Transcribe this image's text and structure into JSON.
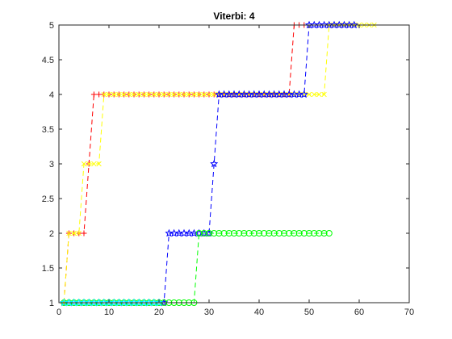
{
  "chart_data": {
    "type": "line",
    "title": "Viterbi: 4",
    "xlabel": "",
    "ylabel": "",
    "xlim": [
      0,
      70
    ],
    "ylim": [
      1,
      5
    ],
    "x_ticks": [
      "0",
      "10",
      "20",
      "30",
      "40",
      "50",
      "60",
      "70"
    ],
    "y_ticks": [
      "1",
      "1.5",
      "2",
      "2.5",
      "3",
      "3.5",
      "4",
      "4.5",
      "5"
    ],
    "grid": false,
    "series": [
      {
        "color": "#ff0000",
        "line_style": "dashed",
        "marker": "plus",
        "x": [
          1,
          2,
          3,
          4,
          5,
          6,
          7,
          8,
          9,
          10,
          11,
          12,
          13,
          14,
          15,
          16,
          17,
          18,
          19,
          20,
          21,
          22,
          23,
          24,
          25,
          26,
          27,
          28,
          29,
          30,
          31,
          32,
          33,
          34,
          35,
          36,
          37,
          38,
          39,
          40,
          41,
          42,
          43,
          44,
          45,
          46,
          47,
          48,
          49
        ],
        "y": [
          1,
          2,
          2,
          2,
          2,
          3,
          4,
          4,
          4,
          4,
          4,
          4,
          4,
          4,
          4,
          4,
          4,
          4,
          4,
          4,
          4,
          4,
          4,
          4,
          4,
          4,
          4,
          4,
          4,
          4,
          4,
          4,
          4,
          4,
          4,
          4,
          4,
          4,
          4,
          4,
          4,
          4,
          4,
          4,
          4,
          4,
          5,
          5,
          5
        ]
      },
      {
        "color": "#ffff00",
        "line_style": "dashed",
        "marker": "x",
        "x": [
          1,
          2,
          3,
          4,
          5,
          6,
          7,
          8,
          9,
          10,
          11,
          12,
          13,
          14,
          15,
          16,
          17,
          18,
          19,
          20,
          21,
          22,
          23,
          24,
          25,
          26,
          27,
          28,
          29,
          30,
          31,
          32,
          33,
          34,
          35,
          36,
          37,
          38,
          39,
          40,
          41,
          42,
          43,
          44,
          45,
          46,
          47,
          48,
          49,
          50,
          51,
          52,
          53,
          54,
          55,
          56,
          57,
          58,
          59,
          60,
          61,
          62,
          63
        ],
        "y": [
          1,
          2,
          2,
          2,
          3,
          3,
          3,
          3,
          4,
          4,
          4,
          4,
          4,
          4,
          4,
          4,
          4,
          4,
          4,
          4,
          4,
          4,
          4,
          4,
          4,
          4,
          4,
          4,
          4,
          4,
          4,
          4,
          4,
          4,
          4,
          4,
          4,
          4,
          4,
          4,
          4,
          4,
          4,
          4,
          4,
          4,
          4,
          4,
          4,
          4,
          4,
          4,
          4,
          5,
          5,
          5,
          5,
          5,
          5,
          5,
          5,
          5,
          5
        ]
      },
      {
        "color": "#0000ff",
        "line_style": "dashed",
        "marker": "star",
        "x": [
          1,
          2,
          3,
          4,
          5,
          6,
          7,
          8,
          9,
          10,
          11,
          12,
          13,
          14,
          15,
          16,
          17,
          18,
          19,
          20,
          21,
          22,
          23,
          24,
          25,
          26,
          27,
          28,
          29,
          30,
          31,
          32,
          33,
          34,
          35,
          36,
          37,
          38,
          39,
          40,
          41,
          42,
          43,
          44,
          45,
          46,
          47,
          48,
          49,
          50,
          51,
          52,
          53,
          54,
          55,
          56,
          57,
          58,
          59
        ],
        "y": [
          1,
          1,
          1,
          1,
          1,
          1,
          1,
          1,
          1,
          1,
          1,
          1,
          1,
          1,
          1,
          1,
          1,
          1,
          1,
          1,
          1,
          2,
          2,
          2,
          2,
          2,
          2,
          2,
          2,
          2,
          3,
          4,
          4,
          4,
          4,
          4,
          4,
          4,
          4,
          4,
          4,
          4,
          4,
          4,
          4,
          4,
          4,
          4,
          4,
          5,
          5,
          5,
          5,
          5,
          5,
          5,
          5,
          5,
          5
        ]
      },
      {
        "color": "#00ff00",
        "line_style": "dashed",
        "marker": "circle",
        "x": [
          1,
          2,
          3,
          4,
          5,
          6,
          7,
          8,
          9,
          10,
          11,
          12,
          13,
          14,
          15,
          16,
          17,
          18,
          19,
          20,
          21,
          22,
          23,
          24,
          25,
          26,
          27,
          28,
          29,
          30,
          31,
          32,
          33,
          34,
          35,
          36,
          37,
          38,
          39,
          40,
          41,
          42,
          43,
          44,
          45,
          46,
          47,
          48,
          49,
          50,
          51,
          52,
          53,
          54
        ],
        "y": [
          1,
          1,
          1,
          1,
          1,
          1,
          1,
          1,
          1,
          1,
          1,
          1,
          1,
          1,
          1,
          1,
          1,
          1,
          1,
          1,
          1,
          1,
          1,
          1,
          1,
          1,
          1,
          2,
          2,
          2,
          2,
          2,
          2,
          2,
          2,
          2,
          2,
          2,
          2,
          2,
          2,
          2,
          2,
          2,
          2,
          2,
          2,
          2,
          2,
          2,
          2,
          2,
          2,
          2
        ]
      },
      {
        "color": "#00ffff",
        "line_style": "dashed",
        "marker": "star",
        "x": [
          1,
          2,
          3,
          4,
          5,
          6,
          7,
          8,
          9,
          10,
          11,
          12,
          13,
          14,
          15,
          16,
          17,
          18,
          19,
          20
        ],
        "y": [
          1,
          1,
          1,
          1,
          1,
          1,
          1,
          1,
          1,
          1,
          1,
          1,
          1,
          1,
          1,
          1,
          1,
          1,
          1,
          1
        ]
      }
    ]
  }
}
